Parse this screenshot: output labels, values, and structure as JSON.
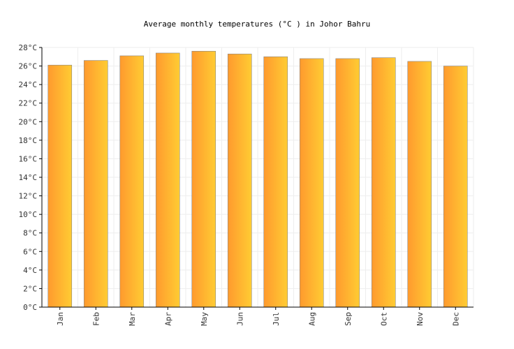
{
  "chart_data": {
    "type": "bar",
    "title": "Average monthly temperatures (°C ) in Johor Bahru",
    "xlabel": "",
    "ylabel": "",
    "categories": [
      "Jan",
      "Feb",
      "Mar",
      "Apr",
      "May",
      "Jun",
      "Jul",
      "Aug",
      "Sep",
      "Oct",
      "Nov",
      "Dec"
    ],
    "values": [
      26.1,
      26.6,
      27.1,
      27.4,
      27.6,
      27.3,
      27.0,
      26.8,
      26.8,
      26.9,
      26.5,
      26.0
    ],
    "ylim": [
      0,
      28
    ],
    "yticks": [
      0,
      2,
      4,
      6,
      8,
      10,
      12,
      14,
      16,
      18,
      20,
      22,
      24,
      26,
      28
    ],
    "ytick_labels": [
      "0°C",
      "2°C",
      "4°C",
      "6°C",
      "8°C",
      "10°C",
      "12°C",
      "14°C",
      "16°C",
      "18°C",
      "20°C",
      "22°C",
      "24°C",
      "26°C",
      "28°C"
    ],
    "grid": true,
    "legend": "none",
    "colors": {
      "bar_start": "#ff9a2e",
      "bar_end": "#ffcc33",
      "bar_stroke": "#888888"
    }
  }
}
